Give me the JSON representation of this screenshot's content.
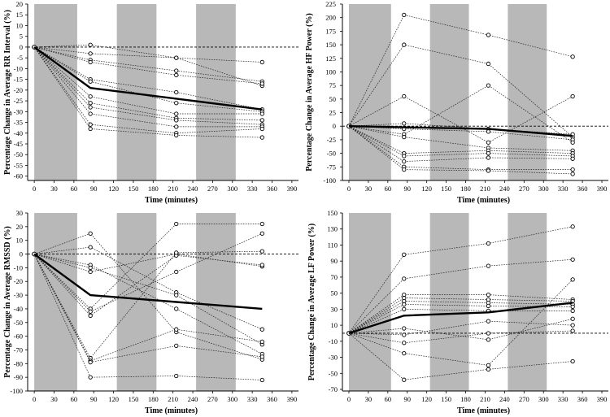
{
  "chart_data": [
    {
      "type": "line",
      "ylabel": "Percentage Change in  Average RR Interval (%)",
      "xlabel": "Time (minutes)",
      "xlim": [
        -10,
        400
      ],
      "ylim": [
        -62,
        20
      ],
      "xticks": [
        0,
        30,
        60,
        90,
        120,
        150,
        180,
        210,
        240,
        270,
        300,
        330,
        360,
        390
      ],
      "yticks": [
        20,
        15,
        10,
        5,
        0,
        -5,
        -10,
        -15,
        -20,
        -25,
        -30,
        -35,
        -40,
        -45,
        -50,
        -55,
        -60
      ],
      "shaded_x": [
        [
          0,
          65
        ],
        [
          125,
          185
        ],
        [
          245,
          305
        ]
      ],
      "reference_y": 0,
      "x": [
        0,
        85,
        215,
        345
      ],
      "mean": [
        0,
        -19,
        -24,
        -29
      ],
      "series": [
        [
          0,
          1,
          -5,
          -7
        ],
        [
          0,
          -3,
          -5,
          -18
        ],
        [
          0,
          -6,
          -11,
          -16
        ],
        [
          0,
          -7,
          -13,
          -17
        ],
        [
          0,
          -15,
          -21,
          -29
        ],
        [
          0,
          -16,
          -26,
          -30
        ],
        [
          0,
          -23,
          -31,
          -31
        ],
        [
          0,
          -26,
          -33,
          -34
        ],
        [
          0,
          -28,
          -34,
          -36
        ],
        [
          0,
          -31,
          -37,
          -37
        ],
        [
          0,
          -36,
          -40,
          -38
        ],
        [
          0,
          -38,
          -41,
          -42
        ]
      ]
    },
    {
      "type": "line",
      "ylabel": "Percentage Change in Average HF Power (%)",
      "xlabel": "Time (minutes)",
      "xlim": [
        -10,
        400
      ],
      "ylim": [
        -100,
        225
      ],
      "xticks": [
        0,
        30,
        60,
        90,
        120,
        150,
        180,
        210,
        240,
        270,
        300,
        330,
        360,
        390
      ],
      "yticks": [
        225,
        200,
        175,
        150,
        125,
        100,
        75,
        50,
        25,
        0,
        -25,
        -50,
        -75,
        -100
      ],
      "shaded_x": [
        [
          0,
          65
        ],
        [
          125,
          185
        ],
        [
          245,
          305
        ]
      ],
      "reference_y": 0,
      "x": [
        0,
        85,
        215,
        345
      ],
      "mean": [
        0,
        -2,
        -5,
        -18
      ],
      "series": [
        [
          0,
          205,
          168,
          128
        ],
        [
          0,
          150,
          115,
          -20
        ],
        [
          0,
          55,
          -30,
          55
        ],
        [
          0,
          5,
          -5,
          -15
        ],
        [
          0,
          -5,
          -10,
          -25
        ],
        [
          0,
          -15,
          75,
          -30
        ],
        [
          0,
          -20,
          -40,
          -45
        ],
        [
          0,
          -50,
          -45,
          -50
        ],
        [
          0,
          -55,
          -50,
          -55
        ],
        [
          0,
          -65,
          -58,
          -60
        ],
        [
          0,
          -75,
          -80,
          -80
        ],
        [
          0,
          -80,
          -82,
          -88
        ]
      ]
    },
    {
      "type": "line",
      "ylabel": "Percentage Change in Average RMSSD (%)",
      "xlabel": "Time (minutes)",
      "xlim": [
        -10,
        400
      ],
      "ylim": [
        -100,
        30
      ],
      "xticks": [
        0,
        30,
        60,
        90,
        120,
        150,
        180,
        210,
        240,
        270,
        300,
        330,
        360,
        390
      ],
      "yticks": [
        30,
        20,
        10,
        0,
        -10,
        -20,
        -30,
        -40,
        -50,
        -60,
        -70,
        -80,
        -90,
        -100
      ],
      "shaded_x": [
        [
          0,
          65
        ],
        [
          125,
          185
        ],
        [
          245,
          305
        ]
      ],
      "reference_y": 0,
      "x": [
        0,
        85,
        215,
        345
      ],
      "mean": [
        0,
        -30,
        -35,
        -40
      ],
      "series": [
        [
          0,
          15,
          -57,
          -77
        ],
        [
          0,
          5,
          -28,
          -55
        ],
        [
          0,
          -8,
          -40,
          -73
        ],
        [
          0,
          -10,
          -30,
          -66
        ],
        [
          0,
          -13,
          0,
          -9
        ],
        [
          0,
          -40,
          22,
          22
        ],
        [
          0,
          -42,
          -13,
          15
        ],
        [
          0,
          -45,
          -1,
          -8
        ],
        [
          0,
          -76,
          1,
          2
        ],
        [
          0,
          -78,
          -55,
          -64
        ],
        [
          0,
          -79,
          -67,
          -75
        ],
        [
          0,
          -90,
          -89,
          -92
        ]
      ]
    },
    {
      "type": "line",
      "ylabel": "Percentage Change in Average LF Power (%)",
      "xlabel": "Time (minutes)",
      "xlim": [
        -10,
        400
      ],
      "ylim": [
        -72,
        150
      ],
      "xticks": [
        0,
        30,
        60,
        90,
        120,
        150,
        180,
        210,
        240,
        270,
        300,
        330,
        360,
        390
      ],
      "yticks": [
        150,
        130,
        110,
        90,
        70,
        50,
        30,
        10,
        -10,
        -30,
        -50,
        -70
      ],
      "shaded_x": [
        [
          0,
          65
        ],
        [
          125,
          185
        ],
        [
          245,
          305
        ]
      ],
      "reference_y": 0,
      "x": [
        0,
        85,
        215,
        345
      ],
      "mean": [
        0,
        22,
        26,
        38
      ],
      "series": [
        [
          0,
          98,
          112,
          133
        ],
        [
          0,
          68,
          84,
          92
        ],
        [
          0,
          48,
          48,
          42
        ],
        [
          0,
          44,
          42,
          40
        ],
        [
          0,
          40,
          38,
          36
        ],
        [
          0,
          36,
          34,
          33
        ],
        [
          0,
          30,
          28,
          28
        ],
        [
          0,
          6,
          -8,
          18
        ],
        [
          0,
          -2,
          15,
          10
        ],
        [
          0,
          -12,
          0,
          3
        ],
        [
          0,
          -25,
          -40,
          67
        ],
        [
          0,
          -58,
          -45,
          -35
        ]
      ]
    }
  ]
}
